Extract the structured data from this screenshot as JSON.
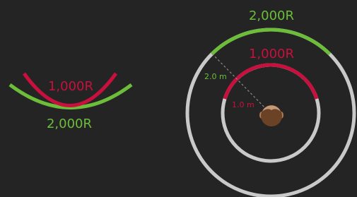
{
  "left_diagram": {
    "inner_label": "1,000R",
    "outer_label": "2,000R"
  },
  "right_diagram": {
    "outer_label": "2,000R",
    "inner_label": "1,000R",
    "outer_radius_label": "2.0 m",
    "inner_radius_label": "1.0 m"
  }
}
